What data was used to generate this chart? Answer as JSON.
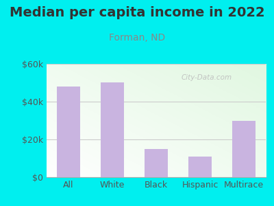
{
  "title": "Median per capita income in 2022",
  "subtitle": "Forman, ND",
  "categories": [
    "All",
    "White",
    "Black",
    "Hispanic",
    "Multirace"
  ],
  "values": [
    48000,
    50000,
    15000,
    11000,
    30000
  ],
  "bar_color": "#c9b4e0",
  "background_outer": "#00efef",
  "title_color": "#333333",
  "subtitle_color": "#888888",
  "tick_label_color": "#555555",
  "ylim": [
    0,
    60000
  ],
  "yticks": [
    0,
    20000,
    40000,
    60000
  ],
  "ytick_labels": [
    "$0",
    "$20k",
    "$40k",
    "$60k"
  ],
  "watermark": "City-Data.com",
  "title_fontsize": 14,
  "subtitle_fontsize": 10,
  "tick_fontsize": 9,
  "grid_color": "#cccccc"
}
